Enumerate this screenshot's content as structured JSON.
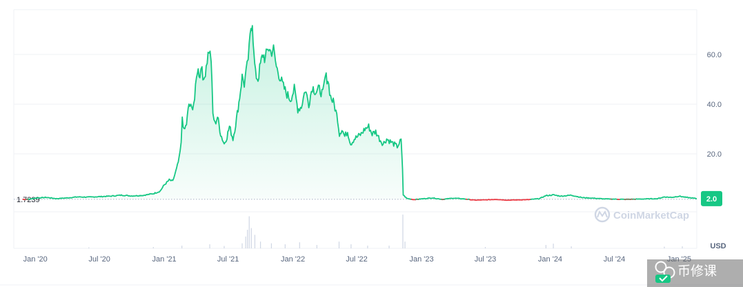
{
  "chart_data": {
    "type": "line",
    "title": "",
    "x_ticks": [
      "Jan '20",
      "Jul '20",
      "Jan '21",
      "Jul '21",
      "Jan '22",
      "Jul '22",
      "Jan '23",
      "Jul '23",
      "Jan '24",
      "Jul '24",
      "Jan '25"
    ],
    "y_ticks": [
      "20.0",
      "40.0",
      "60.0"
    ],
    "ylim": [
      -18,
      78
    ],
    "xlim": [
      "2019-11-01",
      "2025-02-20"
    ],
    "ylabel_unit": "USD",
    "reference_value": "1.7239",
    "reference_y": 1.7239,
    "current_price_label": "2.0",
    "current_price": 2.0,
    "colors": {
      "up": "#16c784",
      "down": "#ea3943",
      "grid": "#eff2f5",
      "text": "#58667e"
    },
    "series": [
      {
        "points": [
          [
            "2019-11-26",
            1.7
          ],
          [
            "2019-12-15",
            1.75
          ],
          [
            "2020-01-01",
            2.2
          ],
          [
            "2020-02-01",
            2.5
          ],
          [
            "2020-03-01",
            2.0
          ],
          [
            "2020-04-01",
            2.3
          ],
          [
            "2020-05-01",
            2.7
          ],
          [
            "2020-06-01",
            2.6
          ],
          [
            "2020-07-01",
            2.8
          ],
          [
            "2020-08-01",
            3.0
          ],
          [
            "2020-09-01",
            3.4
          ],
          [
            "2020-10-01",
            3.1
          ],
          [
            "2020-11-01",
            3.3
          ],
          [
            "2020-12-01",
            4.0
          ],
          [
            "2020-12-20",
            5.0
          ],
          [
            "2021-01-01",
            7.5
          ],
          [
            "2021-01-15",
            9.5
          ],
          [
            "2021-01-25",
            9.0
          ],
          [
            "2021-02-05",
            14.0
          ],
          [
            "2021-02-12",
            18.0
          ],
          [
            "2021-02-18",
            24.0
          ],
          [
            "2021-02-21",
            35.0
          ],
          [
            "2021-02-26",
            29.0
          ],
          [
            "2021-03-05",
            32.0
          ],
          [
            "2021-03-12",
            40.0
          ],
          [
            "2021-03-20",
            38.0
          ],
          [
            "2021-03-28",
            42.0
          ],
          [
            "2021-04-05",
            54.0
          ],
          [
            "2021-04-12",
            52.0
          ],
          [
            "2021-04-18",
            56.0
          ],
          [
            "2021-04-23",
            48.0
          ],
          [
            "2021-04-30",
            56.0
          ],
          [
            "2021-05-08",
            62.0
          ],
          [
            "2021-05-14",
            58.0
          ],
          [
            "2021-05-19",
            36.0
          ],
          [
            "2021-05-25",
            32.0
          ],
          [
            "2021-06-01",
            35.0
          ],
          [
            "2021-06-10",
            28.0
          ],
          [
            "2021-06-20",
            24.0
          ],
          [
            "2021-06-28",
            27.0
          ],
          [
            "2021-07-05",
            31.0
          ],
          [
            "2021-07-15",
            26.0
          ],
          [
            "2021-07-25",
            34.0
          ],
          [
            "2021-08-03",
            43.0
          ],
          [
            "2021-08-10",
            51.0
          ],
          [
            "2021-08-16",
            48.0
          ],
          [
            "2021-08-24",
            55.0
          ],
          [
            "2021-08-30",
            62.0
          ],
          [
            "2021-09-04",
            71.0
          ],
          [
            "2021-09-08",
            73.5
          ],
          [
            "2021-09-12",
            60.0
          ],
          [
            "2021-09-17",
            52.0
          ],
          [
            "2021-09-24",
            50.0
          ],
          [
            "2021-10-01",
            56.0
          ],
          [
            "2021-10-08",
            60.0
          ],
          [
            "2021-10-15",
            58.0
          ],
          [
            "2021-10-22",
            63.0
          ],
          [
            "2021-10-30",
            61.0
          ],
          [
            "2021-11-07",
            62.0
          ],
          [
            "2021-11-15",
            55.0
          ],
          [
            "2021-11-25",
            51.0
          ],
          [
            "2021-12-05",
            47.0
          ],
          [
            "2021-12-15",
            44.0
          ],
          [
            "2021-12-25",
            42.0
          ],
          [
            "2022-01-05",
            46.0
          ],
          [
            "2022-01-15",
            38.0
          ],
          [
            "2022-01-25",
            39.0
          ],
          [
            "2022-02-05",
            46.0
          ],
          [
            "2022-02-15",
            40.0
          ],
          [
            "2022-02-25",
            47.0
          ],
          [
            "2022-03-07",
            45.0
          ],
          [
            "2022-03-17",
            46.0
          ],
          [
            "2022-03-27",
            44.0
          ],
          [
            "2022-04-03",
            51.0
          ],
          [
            "2022-04-10",
            50.0
          ],
          [
            "2022-04-18",
            43.0
          ],
          [
            "2022-04-28",
            40.0
          ],
          [
            "2022-05-08",
            34.0
          ],
          [
            "2022-05-13",
            28.0
          ],
          [
            "2022-05-20",
            30.0
          ],
          [
            "2022-05-28",
            27.0
          ],
          [
            "2022-06-05",
            29.0
          ],
          [
            "2022-06-14",
            24.0
          ],
          [
            "2022-06-24",
            26.0
          ],
          [
            "2022-07-04",
            27.0
          ],
          [
            "2022-07-14",
            28.0
          ],
          [
            "2022-07-24",
            30.0
          ],
          [
            "2022-08-04",
            31.0
          ],
          [
            "2022-08-14",
            28.0
          ],
          [
            "2022-08-24",
            29.0
          ],
          [
            "2022-09-04",
            26.0
          ],
          [
            "2022-09-14",
            24.0
          ],
          [
            "2022-09-24",
            26.0
          ],
          [
            "2022-10-04",
            25.0
          ],
          [
            "2022-10-14",
            24.0
          ],
          [
            "2022-10-24",
            23.0
          ],
          [
            "2022-11-04",
            25.5
          ],
          [
            "2022-11-08",
            14.0
          ],
          [
            "2022-11-10",
            3.5
          ],
          [
            "2022-11-20",
            2.1
          ],
          [
            "2022-12-10",
            1.6
          ],
          [
            "2023-01-01",
            1.9
          ],
          [
            "2023-02-01",
            2.3
          ],
          [
            "2023-03-01",
            1.7
          ],
          [
            "2023-04-01",
            2.2
          ],
          [
            "2023-05-01",
            1.9
          ],
          [
            "2023-06-01",
            1.4
          ],
          [
            "2023-07-01",
            1.5
          ],
          [
            "2023-08-01",
            1.7
          ],
          [
            "2023-09-01",
            1.4
          ],
          [
            "2023-10-01",
            1.5
          ],
          [
            "2023-11-01",
            1.6
          ],
          [
            "2023-12-01",
            2.0
          ],
          [
            "2023-12-20",
            3.2
          ],
          [
            "2024-01-10",
            3.5
          ],
          [
            "2024-02-01",
            3.0
          ],
          [
            "2024-03-01",
            3.4
          ],
          [
            "2024-04-01",
            2.4
          ],
          [
            "2024-05-01",
            2.2
          ],
          [
            "2024-06-01",
            1.9
          ],
          [
            "2024-07-01",
            1.8
          ],
          [
            "2024-08-01",
            1.7
          ],
          [
            "2024-09-01",
            1.8
          ],
          [
            "2024-10-01",
            1.9
          ],
          [
            "2024-11-01",
            2.0
          ],
          [
            "2024-11-20",
            2.7
          ],
          [
            "2024-12-10",
            2.5
          ],
          [
            "2025-01-01",
            3.0
          ],
          [
            "2025-01-20",
            2.5
          ],
          [
            "2025-02-10",
            2.2
          ],
          [
            "2025-02-20",
            2.0
          ]
        ]
      }
    ],
    "volume": [
      [
        "2020-06-01",
        0.03
      ],
      [
        "2020-12-01",
        0.04
      ],
      [
        "2021-02-20",
        0.08
      ],
      [
        "2021-05-10",
        0.12
      ],
      [
        "2021-06-20",
        0.07
      ],
      [
        "2021-08-10",
        0.15
      ],
      [
        "2021-08-20",
        0.35
      ],
      [
        "2021-08-25",
        0.55
      ],
      [
        "2021-08-30",
        0.95
      ],
      [
        "2021-09-05",
        0.6
      ],
      [
        "2021-09-15",
        0.4
      ],
      [
        "2021-10-01",
        0.2
      ],
      [
        "2021-11-01",
        0.15
      ],
      [
        "2021-12-10",
        0.12
      ],
      [
        "2022-01-20",
        0.18
      ],
      [
        "2022-03-10",
        0.1
      ],
      [
        "2022-05-12",
        0.2
      ],
      [
        "2022-06-15",
        0.12
      ],
      [
        "2022-08-01",
        0.08
      ],
      [
        "2022-10-01",
        0.08
      ],
      [
        "2022-11-09",
        1.0
      ],
      [
        "2022-11-15",
        0.2
      ],
      [
        "2023-07-01",
        0.04
      ],
      [
        "2023-12-20",
        0.1
      ],
      [
        "2024-01-10",
        0.14
      ],
      [
        "2024-03-01",
        0.06
      ],
      [
        "2024-11-20",
        0.05
      ],
      [
        "2025-01-10",
        0.06
      ]
    ]
  },
  "watermark": {
    "brand": "CoinMarketCap",
    "icon": "coinmarketcap-logo-icon"
  },
  "overlay": {
    "text": "币修课",
    "icon": "wechat-channel-icon"
  }
}
